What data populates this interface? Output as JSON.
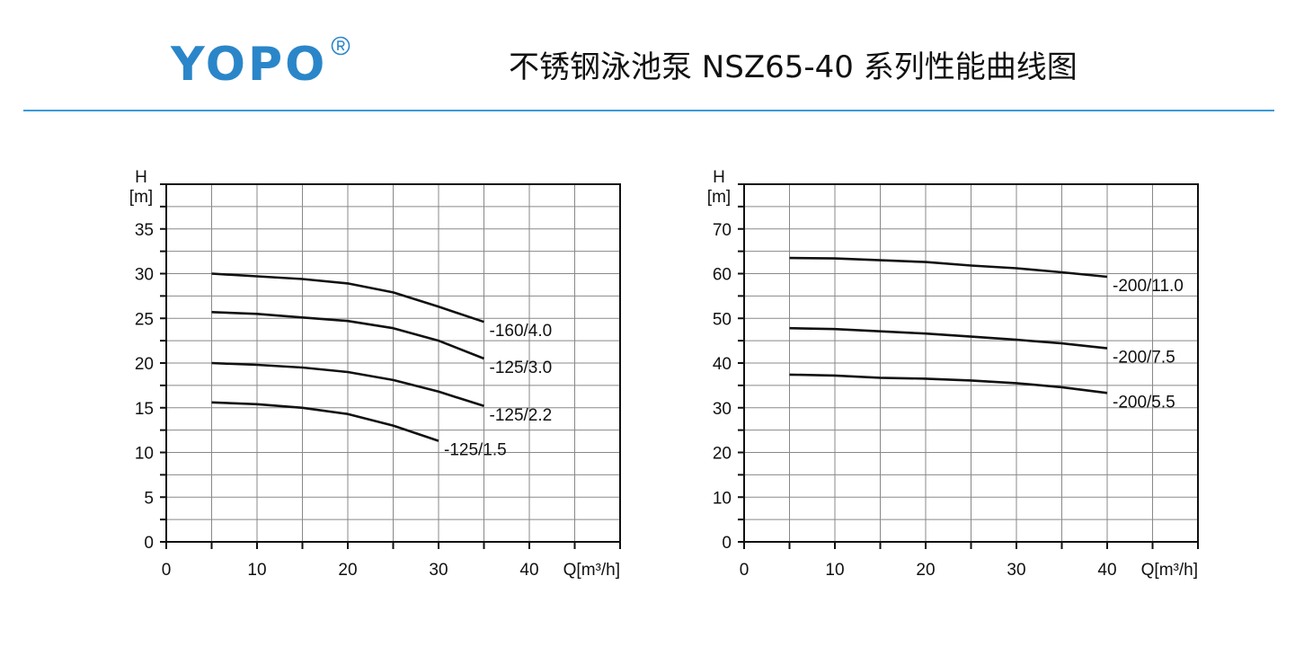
{
  "header": {
    "logo_text": "YOPO",
    "logo_mark": "®",
    "title": "不锈钢泳池泵 NSZ65-40 系列性能曲线图"
  },
  "colors": {
    "brand_blue": "#2a86c9",
    "divider": "#3a9ad9",
    "grid": "#888888",
    "axis": "#111111",
    "curve": "#111111"
  },
  "chart_data": [
    {
      "type": "line",
      "ylabel_symbol": "H",
      "ylabel_unit": "[m]",
      "xlabel": "Q[m³/h]",
      "xlim": [
        0,
        50
      ],
      "ylim": [
        0,
        40
      ],
      "x_ticks": [
        0,
        10,
        20,
        30,
        40
      ],
      "y_ticks": [
        0,
        5,
        10,
        15,
        20,
        25,
        30,
        35
      ],
      "x_grid_step": 5,
      "y_grid_step": 2.5,
      "grid": true,
      "series": [
        {
          "name": "-160/4.0",
          "points": [
            [
              5,
              30.0
            ],
            [
              10,
              29.7
            ],
            [
              15,
              29.4
            ],
            [
              20,
              28.9
            ],
            [
              25,
              27.9
            ],
            [
              30,
              26.3
            ],
            [
              35,
              24.6
            ]
          ]
        },
        {
          "name": "-125/3.0",
          "points": [
            [
              5,
              25.7
            ],
            [
              10,
              25.5
            ],
            [
              15,
              25.1
            ],
            [
              20,
              24.7
            ],
            [
              25,
              23.9
            ],
            [
              30,
              22.5
            ],
            [
              35,
              20.5
            ]
          ]
        },
        {
          "name": "-125/2.2",
          "points": [
            [
              5,
              20.0
            ],
            [
              10,
              19.8
            ],
            [
              15,
              19.5
            ],
            [
              20,
              19.0
            ],
            [
              25,
              18.1
            ],
            [
              30,
              16.8
            ],
            [
              35,
              15.2
            ]
          ]
        },
        {
          "name": "-125/1.5",
          "points": [
            [
              5,
              15.6
            ],
            [
              10,
              15.4
            ],
            [
              15,
              15.0
            ],
            [
              20,
              14.3
            ],
            [
              25,
              13.0
            ],
            [
              30,
              11.3
            ]
          ]
        }
      ]
    },
    {
      "type": "line",
      "ylabel_symbol": "H",
      "ylabel_unit": "[m]",
      "xlabel": "Q[m³/h]",
      "xlim": [
        0,
        50
      ],
      "ylim": [
        0,
        80
      ],
      "x_ticks": [
        0,
        10,
        20,
        30,
        40
      ],
      "y_ticks": [
        0,
        10,
        20,
        30,
        40,
        50,
        60,
        70
      ],
      "x_grid_step": 5,
      "y_grid_step": 5,
      "grid": true,
      "series": [
        {
          "name": "-200/11.0",
          "points": [
            [
              5,
              63.5
            ],
            [
              10,
              63.4
            ],
            [
              15,
              63.0
            ],
            [
              20,
              62.6
            ],
            [
              25,
              61.8
            ],
            [
              30,
              61.2
            ],
            [
              35,
              60.3
            ],
            [
              40,
              59.3
            ]
          ]
        },
        {
          "name": "-200/7.5",
          "points": [
            [
              5,
              47.8
            ],
            [
              10,
              47.6
            ],
            [
              15,
              47.1
            ],
            [
              20,
              46.6
            ],
            [
              25,
              45.9
            ],
            [
              30,
              45.2
            ],
            [
              35,
              44.4
            ],
            [
              40,
              43.3
            ]
          ]
        },
        {
          "name": "-200/5.5",
          "points": [
            [
              5,
              37.4
            ],
            [
              10,
              37.2
            ],
            [
              15,
              36.7
            ],
            [
              20,
              36.5
            ],
            [
              25,
              36.1
            ],
            [
              30,
              35.5
            ],
            [
              35,
              34.6
            ],
            [
              40,
              33.3
            ]
          ]
        }
      ]
    }
  ]
}
